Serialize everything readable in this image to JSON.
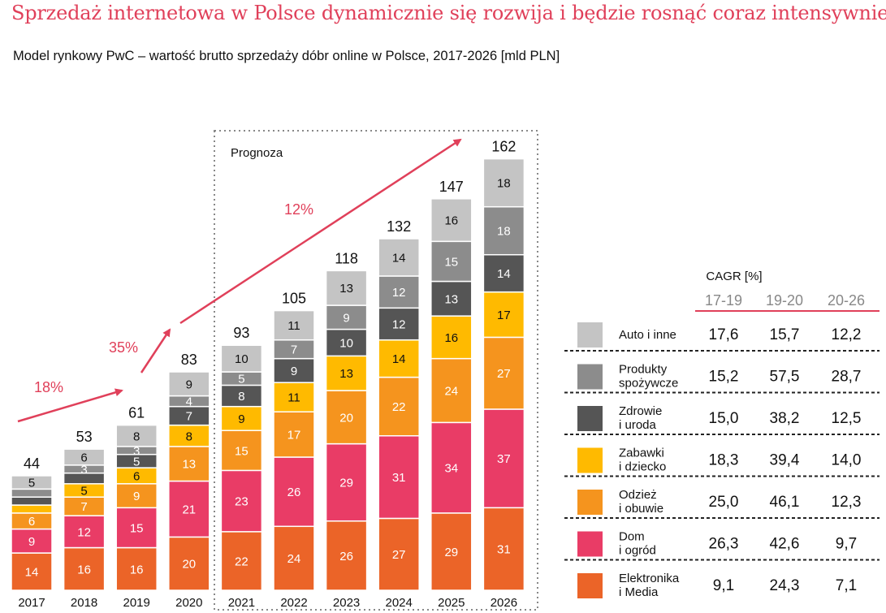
{
  "title": "Sprzedaż internetowa w Polsce dynamicznie się rozwija i będzie rosnąć coraz intensywniej",
  "subtitle": "Model rynkowy PwC – wartość brutto sprzedaży dóbr online w Polsce, 2017-2026 [mld PLN]",
  "forecast_label": "Prognoza",
  "growth_labels": [
    "18%",
    "35%",
    "12%"
  ],
  "colors": {
    "title": "#e0405a",
    "growth": "#e0405a",
    "Auto i inne": "#c4c4c4",
    "Produkty spożywcze": "#8c8c8c",
    "Zdrowie i uroda": "#555555",
    "Zabawki i dziecko": "#ffba00",
    "Odzież i obuwie": "#f5941e",
    "Dom i ogród": "#e93c66",
    "Elektronika i Media": "#eb6428"
  },
  "chart_data": {
    "type": "bar",
    "stacked": true,
    "categories": [
      "2017",
      "2018",
      "2019",
      "2020",
      "2021",
      "2022",
      "2023",
      "2024",
      "2025",
      "2026"
    ],
    "totals": [
      44,
      53,
      61,
      83,
      93,
      105,
      118,
      132,
      147,
      162
    ],
    "ylim": [
      0,
      162
    ],
    "series": [
      {
        "name": "Elektronika i Media",
        "values": [
          14,
          16,
          16,
          20,
          22,
          24,
          26,
          27,
          29,
          31
        ]
      },
      {
        "name": "Dom i ogród",
        "values": [
          9,
          12,
          15,
          21,
          23,
          26,
          29,
          31,
          34,
          37
        ]
      },
      {
        "name": "Odzież i obuwie",
        "values": [
          6,
          7,
          9,
          13,
          15,
          17,
          20,
          22,
          24,
          27
        ]
      },
      {
        "name": "Zabawki i dziecko",
        "values": [
          3,
          5,
          6,
          8,
          9,
          11,
          13,
          14,
          16,
          17
        ]
      },
      {
        "name": "Zdrowie i uroda",
        "values": [
          3,
          4,
          5,
          7,
          8,
          9,
          10,
          12,
          13,
          14
        ]
      },
      {
        "name": "Produkty spożywcze",
        "values": [
          3,
          3,
          3,
          4,
          5,
          7,
          9,
          12,
          15,
          18
        ]
      },
      {
        "name": "Auto i inne",
        "values": [
          5,
          6,
          8,
          9,
          10,
          11,
          13,
          14,
          16,
          18
        ]
      }
    ],
    "hidden_labels": [
      [
        false,
        false,
        false,
        false,
        false,
        false,
        false,
        false,
        false,
        false
      ],
      [
        false,
        false,
        false,
        false,
        false,
        false,
        false,
        false,
        false,
        false
      ],
      [
        false,
        false,
        false,
        false,
        false,
        false,
        false,
        false,
        false,
        false
      ],
      [
        true,
        false,
        false,
        false,
        false,
        false,
        false,
        false,
        false,
        false
      ],
      [
        true,
        true,
        false,
        false,
        false,
        false,
        false,
        false,
        false,
        false
      ],
      [
        true,
        false,
        false,
        false,
        false,
        false,
        false,
        false,
        false,
        false
      ],
      [
        false,
        false,
        false,
        false,
        false,
        false,
        false,
        false,
        false,
        false
      ]
    ],
    "forecast_range": [
      "2021",
      "2026"
    ]
  },
  "cagr_table": {
    "title": "CAGR [%]",
    "columns": [
      "17-19",
      "19-20",
      "20-26"
    ],
    "rows": [
      {
        "label": [
          "Auto i inne"
        ],
        "series": "Auto i inne",
        "values": [
          "17,6",
          "15,7",
          "12,2"
        ]
      },
      {
        "label": [
          "Produkty",
          "spożywcze"
        ],
        "series": "Produkty spożywcze",
        "values": [
          "15,2",
          "57,5",
          "28,7"
        ]
      },
      {
        "label": [
          "Zdrowie",
          "i uroda"
        ],
        "series": "Zdrowie i uroda",
        "values": [
          "15,0",
          "38,2",
          "12,5"
        ]
      },
      {
        "label": [
          "Zabawki",
          "i dziecko"
        ],
        "series": "Zabawki i dziecko",
        "values": [
          "18,3",
          "39,4",
          "14,0"
        ]
      },
      {
        "label": [
          "Odzież",
          "i obuwie"
        ],
        "series": "Odzież i obuwie",
        "values": [
          "25,0",
          "46,1",
          "12,3"
        ]
      },
      {
        "label": [
          "Dom",
          "i ogród"
        ],
        "series": "Dom i ogród",
        "values": [
          "26,3",
          "42,6",
          "9,7"
        ]
      },
      {
        "label": [
          "Elektronika",
          "i Media"
        ],
        "series": "Elektronika i Media",
        "values": [
          "9,1",
          "24,3",
          "7,1"
        ]
      }
    ]
  }
}
